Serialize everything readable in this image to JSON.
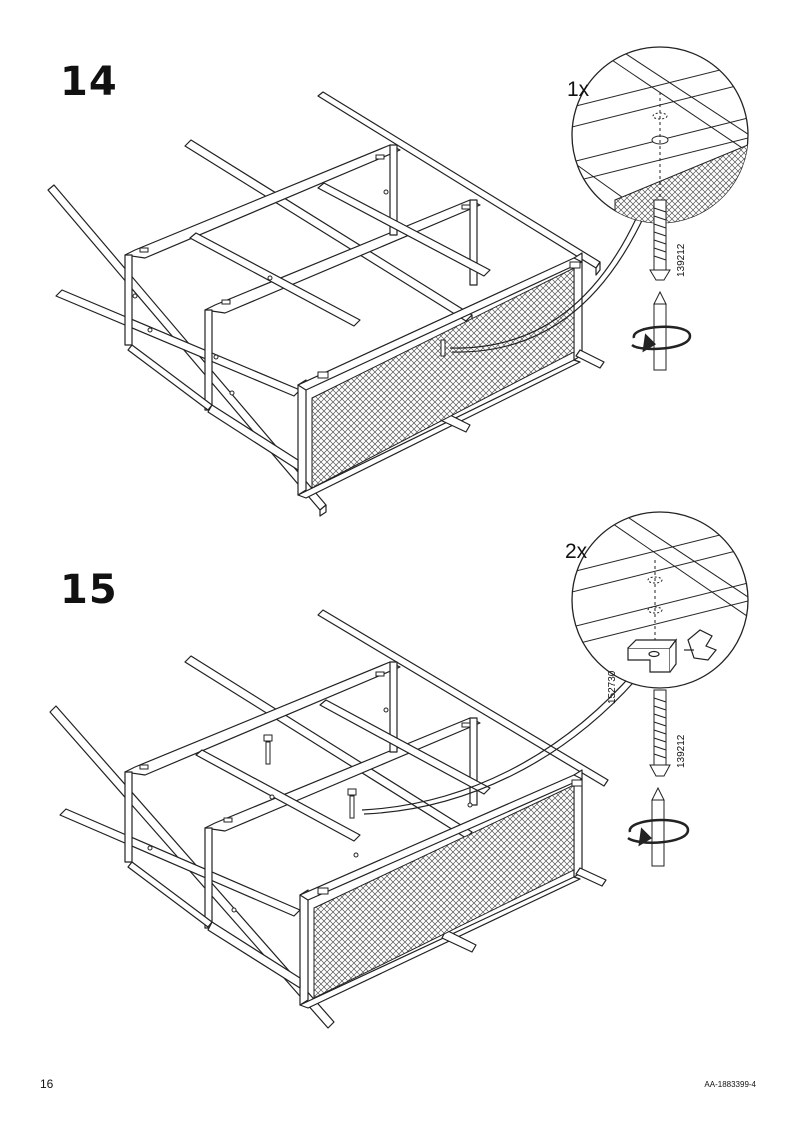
{
  "steps": [
    {
      "number": "14",
      "quantity": "1x",
      "part_numbers": [
        "139212"
      ]
    },
    {
      "number": "15",
      "quantity": "2x",
      "part_numbers": [
        "152730",
        "139212"
      ]
    }
  ],
  "footer": {
    "page_number": "16",
    "document_id": "AA-1883399-4"
  },
  "icons": [
    "screwdriver-icon",
    "rotate-clockwise-icon",
    "bolt-icon",
    "bracket-icon",
    "hand-pointer-icon"
  ]
}
